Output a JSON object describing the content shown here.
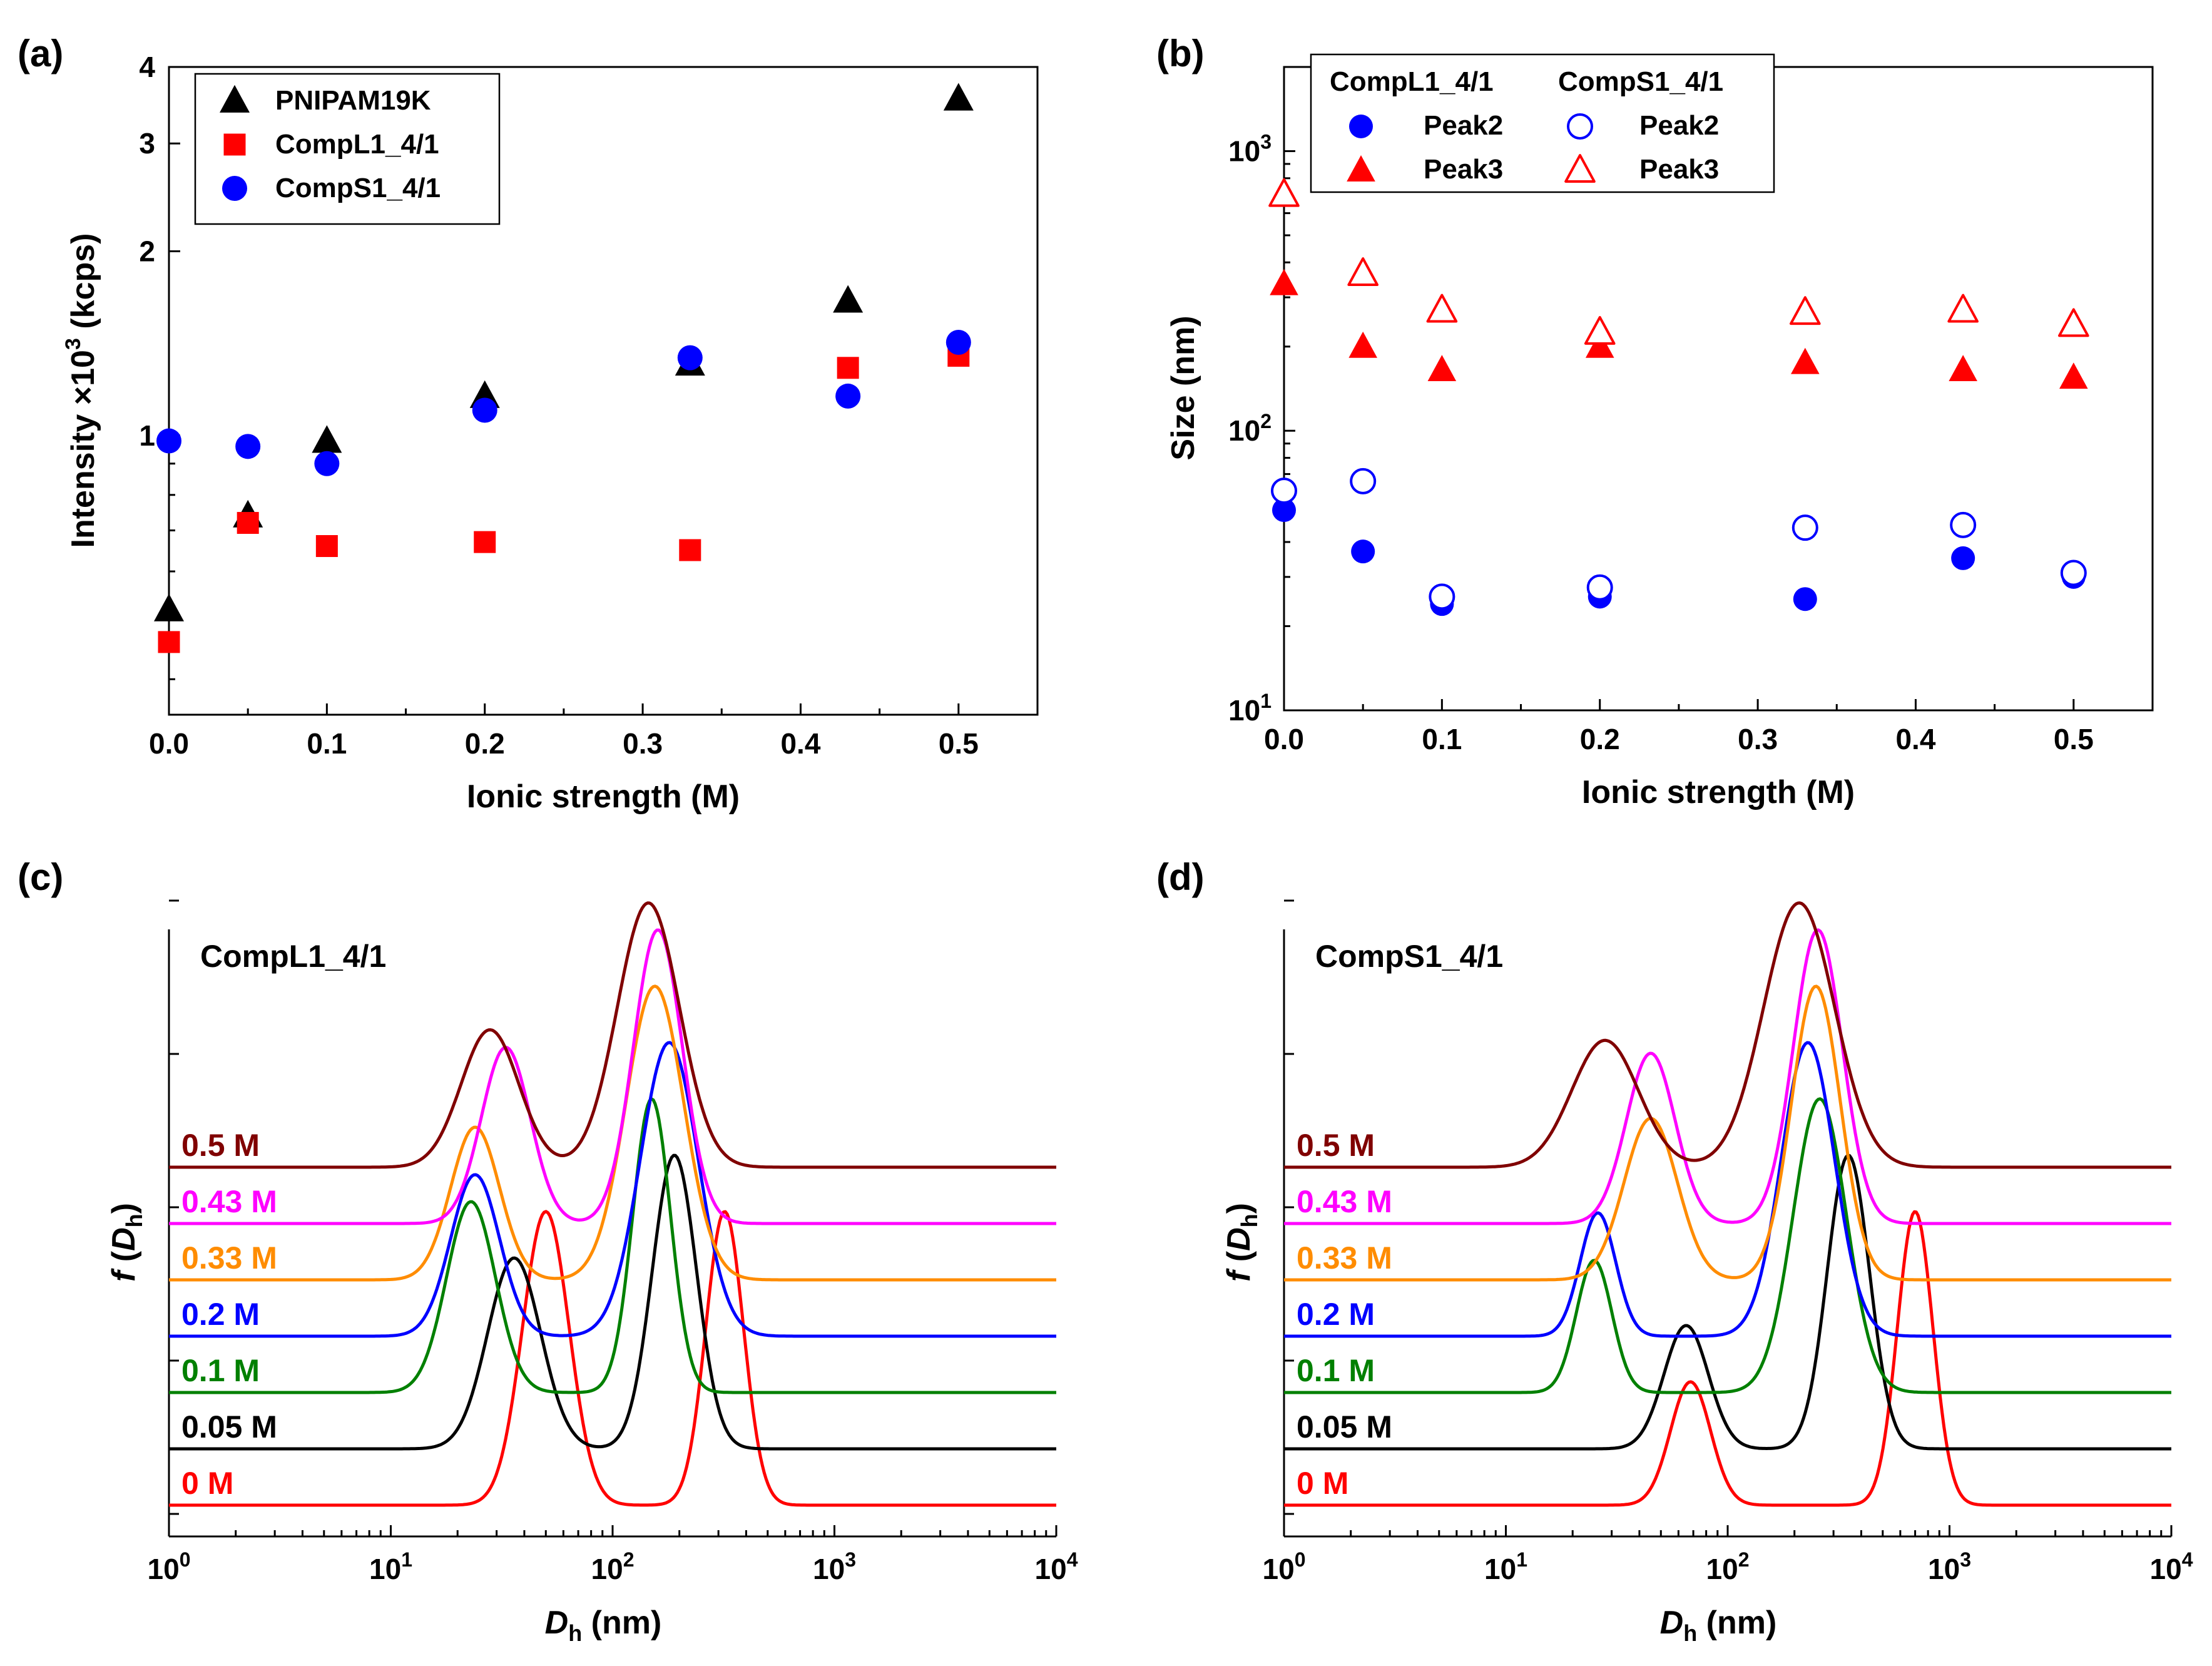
{
  "figure": {
    "panel_labels": [
      "(a)",
      "(b)",
      "(c)",
      "(d)"
    ]
  },
  "chart_data": [
    {
      "panel": "(a)",
      "type": "scatter",
      "xlabel": "Ionic strength (M)",
      "ylabel_main": "Intensity ×10",
      "ylabel_sup": "3",
      "ylabel_unit": " (kcps)",
      "xlim": [
        0,
        0.55
      ],
      "ylim": [
        0.35,
        4
      ],
      "yscale": "log",
      "xticks": [
        0.0,
        0.1,
        0.2,
        0.3,
        0.4,
        0.5
      ],
      "xtick_labels": [
        "0.0",
        "0.1",
        "0.2",
        "0.3",
        "0.4",
        "0.5"
      ],
      "yticks": [
        1,
        2,
        3,
        4
      ],
      "ytick_labels": [
        "1",
        "2",
        "3",
        "4"
      ],
      "legend_position": "top-left",
      "series": [
        {
          "name": "PNIPAM19K",
          "marker": "triangle",
          "filled": true,
          "color": "#000000",
          "x": [
            0,
            0.05,
            0.1,
            0.2,
            0.33,
            0.43,
            0.5
          ],
          "y": [
            0.52,
            0.74,
            0.98,
            1.16,
            1.31,
            1.66,
            3.55
          ]
        },
        {
          "name": "CompL1_4/1",
          "marker": "square",
          "filled": true,
          "color": "#ff0000",
          "x": [
            0,
            0.05,
            0.1,
            0.2,
            0.33,
            0.43,
            0.5
          ],
          "y": [
            0.46,
            0.72,
            0.66,
            0.67,
            0.65,
            1.29,
            1.35
          ]
        },
        {
          "name": "CompS1_4/1",
          "marker": "circle",
          "filled": true,
          "color": "#0000ff",
          "x": [
            0,
            0.05,
            0.1,
            0.2,
            0.33,
            0.43,
            0.5
          ],
          "y": [
            0.98,
            0.96,
            0.9,
            1.1,
            1.34,
            1.16,
            1.42
          ]
        }
      ]
    },
    {
      "panel": "(b)",
      "type": "scatter",
      "xlabel": "Ionic strength (M)",
      "ylabel": "Size (nm)",
      "xlim": [
        0,
        0.55
      ],
      "ylim": [
        10,
        2000
      ],
      "yscale": "log",
      "xticks": [
        0.0,
        0.1,
        0.2,
        0.3,
        0.4,
        0.5
      ],
      "xtick_labels": [
        "0.0",
        "0.1",
        "0.2",
        "0.3",
        "0.4",
        "0.5"
      ],
      "yticks": [
        10,
        100,
        1000
      ],
      "ytick_base": [
        "10",
        "10",
        "10"
      ],
      "ytick_exp": [
        "1",
        "2",
        "3"
      ],
      "legend_position": "top-left",
      "legend_headers": [
        "CompL1_4/1",
        "CompS1_4/1"
      ],
      "series": [
        {
          "name": "Peak2",
          "group": "CompL1_4/1",
          "marker": "circle",
          "filled": true,
          "color": "#0000ff",
          "x": [
            0,
            0.05,
            0.1,
            0.2,
            0.33,
            0.43,
            0.5
          ],
          "y": [
            52,
            37,
            24,
            25.5,
            25,
            35,
            30
          ]
        },
        {
          "name": "Peak3",
          "group": "CompL1_4/1",
          "marker": "triangle",
          "filled": true,
          "color": "#ff0000",
          "x": [
            0,
            0.05,
            0.1,
            0.2,
            0.33,
            0.43,
            0.5
          ],
          "y": [
            335,
            200,
            165,
            200,
            175,
            165,
            155
          ]
        },
        {
          "name": "Peak2",
          "group": "CompS1_4/1",
          "marker": "circle",
          "filled": false,
          "color": "#0000ff",
          "x": [
            0,
            0.05,
            0.1,
            0.2,
            0.33,
            0.43,
            0.5
          ],
          "y": [
            61,
            66,
            25.5,
            27.5,
            45,
            46,
            31
          ]
        },
        {
          "name": "Peak3",
          "group": "CompS1_4/1",
          "marker": "triangle",
          "filled": false,
          "color": "#ff0000",
          "x": [
            0,
            0.05,
            0.1,
            0.2,
            0.33,
            0.43,
            0.5
          ],
          "y": [
            700,
            365,
            270,
            225,
            265,
            270,
            240
          ]
        }
      ]
    },
    {
      "panel": "(c)",
      "type": "line",
      "title": "CompL1_4/1",
      "xlabel_italic": "D",
      "xlabel_sub": "h",
      "xlabel_unit": " (nm)",
      "ylabel_italic": "f",
      "ylabel_var": "D",
      "ylabel_sub": "h",
      "xscale": "log",
      "xlim": [
        1,
        10000
      ],
      "xtick_base": [
        "10",
        "10",
        "10",
        "10",
        "10"
      ],
      "xtick_exp": [
        "0",
        "1",
        "2",
        "3",
        "4"
      ],
      "series": [
        {
          "name": "0 M",
          "color": "#ff0000",
          "peaks": [
            [
              50,
              0.105,
              1.0
            ],
            [
              320,
              0.085,
              1.0
            ]
          ]
        },
        {
          "name": "0.05 M",
          "color": "#000000",
          "peaks": [
            [
              36,
              0.12,
              0.65
            ],
            [
              190,
              0.1,
              1.0
            ]
          ]
        },
        {
          "name": "0.1 M",
          "color": "#008000",
          "peaks": [
            [
              23,
              0.11,
              0.65
            ],
            [
              150,
              0.085,
              1.0
            ]
          ]
        },
        {
          "name": "0.2 M",
          "color": "#0000ff",
          "peaks": [
            [
              24,
              0.11,
              0.55
            ],
            [
              180,
              0.13,
              1.0
            ]
          ]
        },
        {
          "name": "0.33 M",
          "color": "#ff8c00",
          "peaks": [
            [
              24,
              0.11,
              0.52
            ],
            [
              155,
              0.13,
              1.0
            ]
          ]
        },
        {
          "name": "0.43 M",
          "color": "#ff00ff",
          "peaks": [
            [
              33,
              0.11,
              0.6
            ],
            [
              160,
              0.11,
              1.0
            ]
          ]
        },
        {
          "name": "0.5 M",
          "color": "#800000",
          "peaks": [
            [
              28,
              0.13,
              0.52
            ],
            [
              145,
              0.14,
              1.0
            ]
          ]
        }
      ]
    },
    {
      "panel": "(d)",
      "type": "line",
      "title": "CompS1_4/1",
      "xlabel_italic": "D",
      "xlabel_sub": "h",
      "xlabel_unit": " (nm)",
      "ylabel_italic": "f",
      "ylabel_var": "D",
      "ylabel_sub": "h",
      "xscale": "log",
      "xlim": [
        1,
        10000
      ],
      "xtick_base": [
        "10",
        "10",
        "10",
        "10",
        "10"
      ],
      "xtick_exp": [
        "0",
        "1",
        "2",
        "3",
        "4"
      ],
      "series": [
        {
          "name": "0 M",
          "color": "#ff0000",
          "peaks": [
            [
              68,
              0.09,
              0.42
            ],
            [
              700,
              0.08,
              1.0
            ]
          ]
        },
        {
          "name": "0.05 M",
          "color": "#000000",
          "peaks": [
            [
              65,
              0.1,
              0.42
            ],
            [
              350,
              0.095,
              1.0
            ]
          ]
        },
        {
          "name": "0.1 M",
          "color": "#008000",
          "peaks": [
            [
              25,
              0.08,
              0.45
            ],
            [
              260,
              0.12,
              1.0
            ]
          ]
        },
        {
          "name": "0.2 M",
          "color": "#0000ff",
          "peaks": [
            [
              26,
              0.08,
              0.42
            ],
            [
              230,
              0.12,
              1.0
            ]
          ]
        },
        {
          "name": "0.33 M",
          "color": "#ff8c00",
          "peaks": [
            [
              45,
              0.12,
              0.55
            ],
            [
              250,
              0.11,
              1.0
            ]
          ]
        },
        {
          "name": "0.43 M",
          "color": "#ff00ff",
          "peaks": [
            [
              45,
              0.11,
              0.58
            ],
            [
              255,
              0.11,
              1.0
            ]
          ]
        },
        {
          "name": "0.5 M",
          "color": "#800000",
          "peaks": [
            [
              28,
              0.15,
              0.48
            ],
            [
              210,
              0.16,
              1.0
            ]
          ]
        }
      ]
    }
  ]
}
